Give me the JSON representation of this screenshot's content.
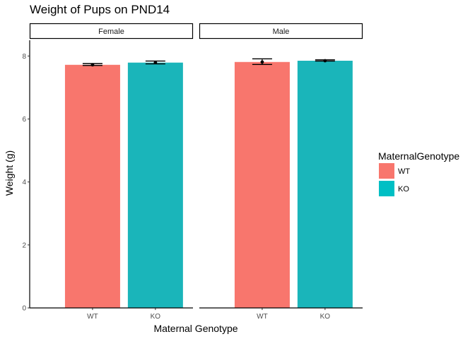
{
  "chart_data": {
    "type": "bar",
    "title": "Weight of Pups on PND14",
    "xlabel": "Maternal Genotype",
    "ylabel": "Weight (g)",
    "ylim": [
      0,
      8.5
    ],
    "yticks": [
      0,
      2,
      4,
      6,
      8
    ],
    "categories": [
      "WT",
      "KO"
    ],
    "facets": [
      {
        "label": "Female",
        "values": [
          7.72,
          7.79
        ],
        "errors": [
          {
            "low": 7.7,
            "high": 7.76
          },
          {
            "low": 7.75,
            "high": 7.84
          }
        ]
      },
      {
        "label": "Male",
        "values": [
          7.81,
          7.85
        ],
        "errors": [
          {
            "low": 7.73,
            "high": 7.91
          },
          {
            "low": 7.84,
            "high": 7.88
          }
        ]
      }
    ],
    "legend": {
      "title": "MaternalGenotype",
      "position": "right",
      "items": [
        {
          "label": "WT",
          "color": "#F8766D"
        },
        {
          "label": "KO",
          "color": "#00BFC4"
        }
      ]
    },
    "colors": {
      "WT": "#F8766D",
      "KO": "#1AB5BA"
    }
  }
}
